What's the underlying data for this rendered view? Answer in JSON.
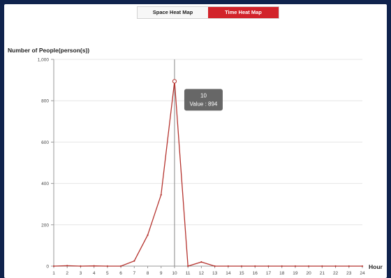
{
  "tabs": [
    {
      "label": "Space Heat Map",
      "active": false
    },
    {
      "label": "Time Heat Map",
      "active": true
    }
  ],
  "colors": {
    "accent": "#d2232a",
    "line": "#b5332e",
    "frame": "#10234d",
    "grid": "#e6e6e6",
    "tooltip": "#5a5a5a"
  },
  "tooltip": {
    "title": "10",
    "value_text": "Value : 894"
  },
  "chart_data": {
    "type": "line",
    "ylabel": "Number of People(person(s))",
    "xlabel": "Hour",
    "ylim": [
      0,
      1000
    ],
    "yticks": [
      0,
      200,
      400,
      600,
      800,
      1000
    ],
    "ytick_labels": [
      "0",
      "200",
      "400",
      "600",
      "800",
      "1,000"
    ],
    "x": [
      1,
      2,
      3,
      4,
      5,
      6,
      7,
      8,
      9,
      10,
      11,
      12,
      13,
      14,
      15,
      16,
      17,
      18,
      19,
      20,
      21,
      22,
      23,
      24
    ],
    "series": [
      {
        "values": [
          0,
          2,
          0,
          1,
          0,
          0,
          25,
          150,
          345,
          894,
          0,
          20,
          0,
          0,
          0,
          0,
          0,
          0,
          0,
          0,
          0,
          0,
          0,
          0
        ]
      }
    ],
    "highlight_x": 10,
    "grid": true,
    "legend": "none"
  }
}
